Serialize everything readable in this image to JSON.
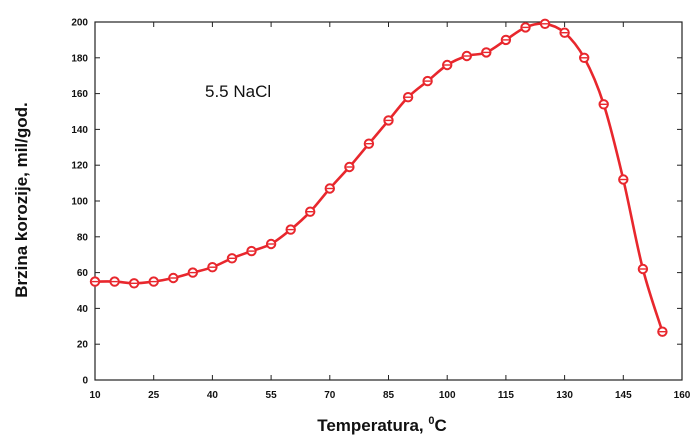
{
  "chart_data": {
    "type": "line",
    "title": "",
    "annotation": "5.5 NaCl",
    "xlabel": "Temperatura, ",
    "xlabel_sup": "0",
    "xlabel_unit": "C",
    "ylabel": "Brzina korozije, mil/god.",
    "xlim": [
      10,
      160
    ],
    "ylim": [
      0,
      200
    ],
    "xticks": [
      10,
      25,
      40,
      55,
      70,
      85,
      100,
      115,
      130,
      145,
      160
    ],
    "yticks": [
      0,
      20,
      40,
      60,
      80,
      100,
      120,
      140,
      160,
      180,
      200
    ],
    "grid": false,
    "legend": "none",
    "series": [
      {
        "color": "#e8272d",
        "marker": "open-circle",
        "x": [
          10,
          15,
          20,
          25,
          30,
          35,
          40,
          45,
          50,
          55,
          60,
          65,
          70,
          75,
          80,
          85,
          90,
          95,
          100,
          105,
          110,
          115,
          120,
          125,
          130,
          135,
          140,
          145,
          150,
          155
        ],
        "y": [
          55,
          55,
          54,
          55,
          57,
          60,
          63,
          68,
          72,
          76,
          84,
          94,
          107,
          119,
          132,
          145,
          158,
          167,
          176,
          181,
          183,
          190,
          197,
          199,
          194,
          180,
          154,
          112,
          62,
          27
        ]
      }
    ]
  }
}
